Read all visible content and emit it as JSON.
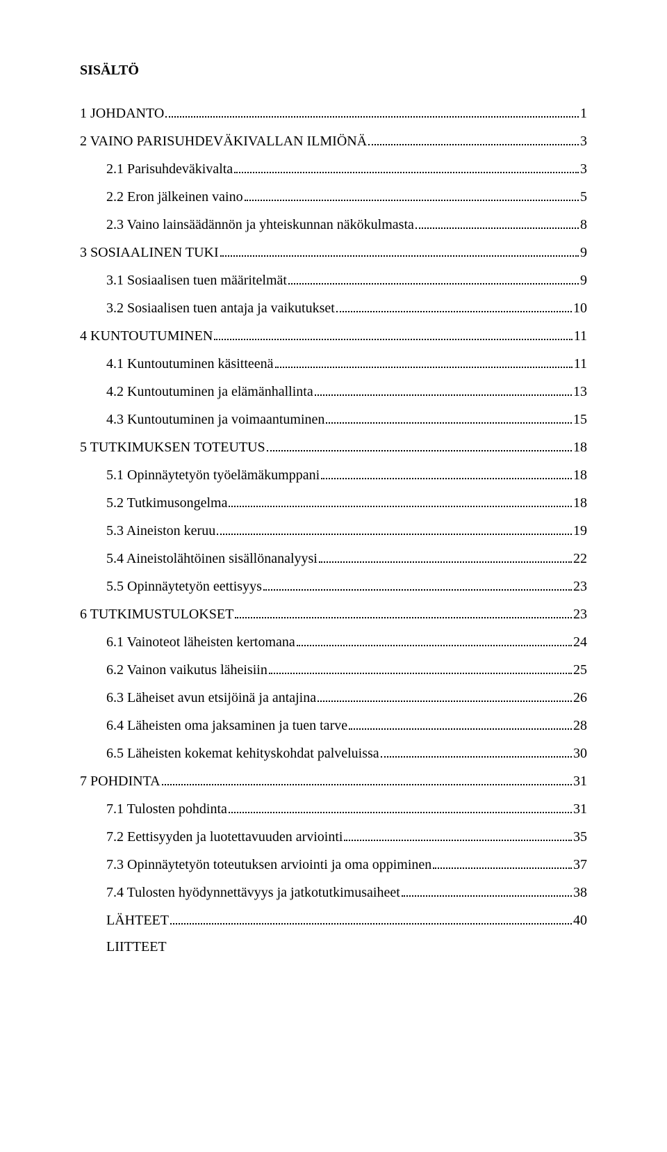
{
  "title": "SISÄLTÖ",
  "entries": [
    {
      "label": "1 JOHDANTO",
      "page": "1",
      "level": 0,
      "gap": true
    },
    {
      "label": "2 VAINO PARISUHDEVÄKIVALLAN ILMIÖNÄ",
      "page": "3",
      "level": 0,
      "gap": true
    },
    {
      "label": "2.1 Parisuhdeväkivalta",
      "page": "3",
      "level": 1,
      "gap": false
    },
    {
      "label": "2.2 Eron jälkeinen vaino",
      "page": "5",
      "level": 1,
      "gap": false
    },
    {
      "label": "2.3 Vaino lainsäädännön ja yhteiskunnan näkökulmasta",
      "page": "8",
      "level": 1,
      "gap": false
    },
    {
      "label": "3 SOSIAALINEN TUKI",
      "page": "9",
      "level": 0,
      "gap": true
    },
    {
      "label": "3.1 Sosiaalisen tuen määritelmät",
      "page": "9",
      "level": 1,
      "gap": false
    },
    {
      "label": "3.2 Sosiaalisen tuen antaja ja vaikutukset",
      "page": "10",
      "level": 1,
      "gap": false
    },
    {
      "label": "4 KUNTOUTUMINEN",
      "page": "11",
      "level": 0,
      "gap": true
    },
    {
      "label": "4.1 Kuntoutuminen käsitteenä",
      "page": "11",
      "level": 1,
      "gap": false
    },
    {
      "label": "4.2 Kuntoutuminen ja elämänhallinta",
      "page": "13",
      "level": 1,
      "gap": false
    },
    {
      "label": "4.3 Kuntoutuminen ja voimaantuminen",
      "page": "15",
      "level": 1,
      "gap": false
    },
    {
      "label": "5 TUTKIMUKSEN TOTEUTUS",
      "page": "18",
      "level": 0,
      "gap": true
    },
    {
      "label": "5.1 Opinnäytetyön työelämäkumppani",
      "page": "18",
      "level": 1,
      "gap": false
    },
    {
      "label": "5.2 Tutkimusongelma",
      "page": "18",
      "level": 1,
      "gap": false
    },
    {
      "label": "5.3 Aineiston keruu",
      "page": "19",
      "level": 1,
      "gap": false
    },
    {
      "label": "5.4 Aineistolähtöinen sisällönanalyysi",
      "page": "22",
      "level": 1,
      "gap": false
    },
    {
      "label": "5.5 Opinnäytetyön eettisyys",
      "page": "23",
      "level": 1,
      "gap": false
    },
    {
      "label": "6 TUTKIMUSTULOKSET",
      "page": "23",
      "level": 0,
      "gap": true
    },
    {
      "label": "6.1 Vainoteot läheisten kertomana",
      "page": "24",
      "level": 1,
      "gap": false
    },
    {
      "label": "6.2 Vainon vaikutus läheisiin",
      "page": "25",
      "level": 1,
      "gap": false
    },
    {
      "label": "6.3 Läheiset avun etsijöinä ja antajina",
      "page": "26",
      "level": 1,
      "gap": false
    },
    {
      "label": "6.4 Läheisten oma jaksaminen ja tuen tarve",
      "page": "28",
      "level": 1,
      "gap": false
    },
    {
      "label": "6.5 Läheisten kokemat kehityskohdat palveluissa",
      "page": "30",
      "level": 1,
      "gap": false
    },
    {
      "label": "7 POHDINTA",
      "page": "31",
      "level": 0,
      "gap": true
    },
    {
      "label": "7.1 Tulosten pohdinta",
      "page": "31",
      "level": 1,
      "gap": false
    },
    {
      "label": "7.2 Eettisyyden ja luotettavuuden arviointi",
      "page": "35",
      "level": 1,
      "gap": false
    },
    {
      "label": "7.3 Opinnäytetyön toteutuksen arviointi ja oma oppiminen",
      "page": "37",
      "level": 1,
      "gap": false
    },
    {
      "label": "7.4 Tulosten hyödynnettävyys ja jatkotutkimusaiheet",
      "page": "38",
      "level": 1,
      "gap": false
    },
    {
      "label": "LÄHTEET",
      "page": "40",
      "level": 1,
      "gap": true
    },
    {
      "label": "LIITTEET",
      "page": "",
      "level": 1,
      "gap": true
    }
  ]
}
